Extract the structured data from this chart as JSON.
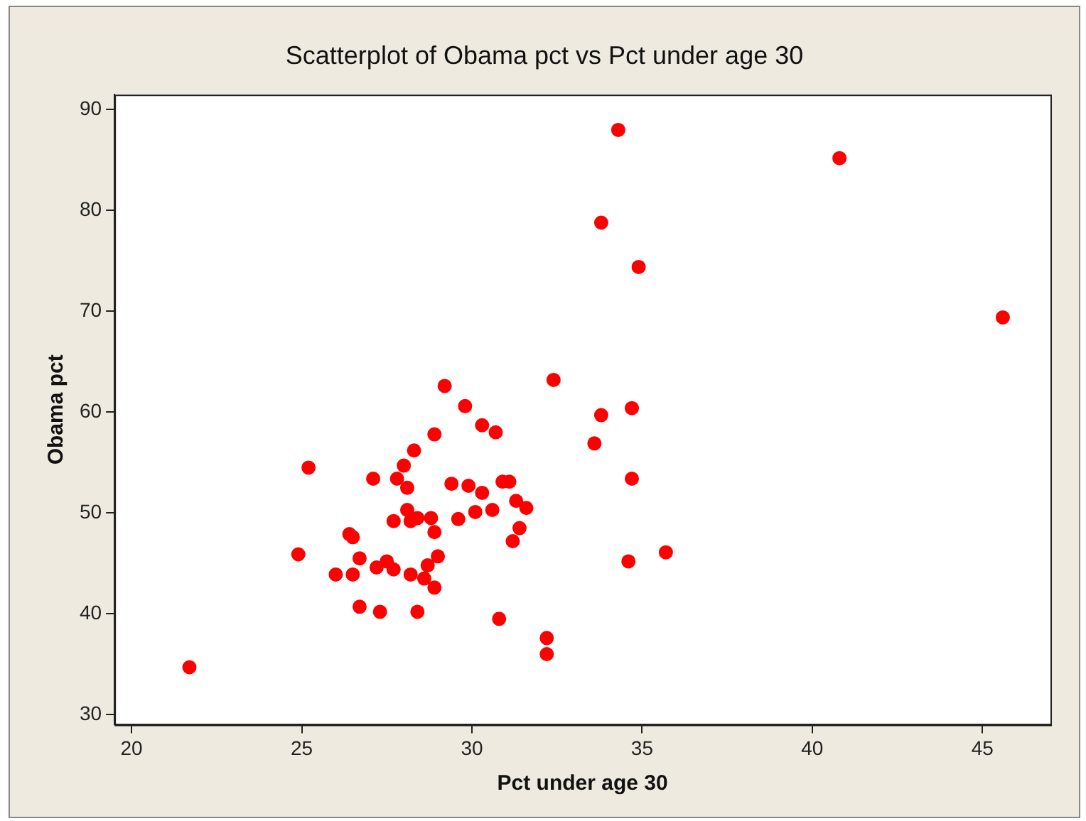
{
  "chart_data": {
    "type": "scatter",
    "title": "Scatterplot of Obama pct vs Pct under age 30",
    "xlabel": "Pct under age 30",
    "ylabel": "Obama pct",
    "series": [
      {
        "color": "#ff0000",
        "x": [
          21.7,
          24.9,
          25.2,
          26.0,
          26.4,
          26.5,
          26.5,
          26.7,
          26.7,
          27.1,
          27.2,
          27.3,
          27.5,
          27.7,
          27.7,
          27.8,
          28.0,
          28.1,
          28.1,
          28.2,
          28.2,
          28.3,
          28.4,
          28.4,
          28.6,
          28.7,
          28.8,
          28.9,
          28.9,
          28.9,
          29.0,
          29.2,
          29.4,
          29.6,
          29.8,
          29.9,
          30.1,
          30.3,
          30.3,
          30.6,
          30.7,
          30.8,
          30.9,
          31.1,
          31.2,
          31.3,
          31.4,
          31.6,
          32.2,
          32.2,
          32.4,
          33.6,
          33.8,
          33.8,
          34.3,
          34.6,
          34.7,
          34.7,
          34.9,
          35.7,
          40.8,
          45.6
        ],
        "values": [
          34.7,
          45.9,
          54.5,
          43.9,
          47.9,
          47.6,
          43.9,
          45.5,
          40.7,
          53.4,
          44.6,
          40.2,
          45.2,
          44.4,
          49.2,
          53.4,
          54.7,
          52.5,
          50.3,
          49.2,
          43.9,
          56.2,
          49.5,
          40.2,
          43.5,
          44.8,
          49.5,
          48.1,
          57.8,
          42.6,
          45.7,
          62.6,
          52.9,
          49.4,
          60.6,
          52.7,
          50.1,
          58.7,
          52.0,
          50.3,
          58.0,
          39.5,
          53.1,
          53.1,
          47.2,
          51.2,
          48.5,
          50.5,
          37.6,
          36.0,
          63.2,
          56.9,
          59.7,
          78.8,
          88.0,
          45.2,
          60.4,
          53.4,
          74.4,
          46.1,
          85.2,
          69.4
        ]
      }
    ],
    "xlim": [
      19.5,
      47
    ],
    "ylim": [
      29,
      91.5
    ],
    "xticks": [
      20,
      25,
      30,
      35,
      40,
      45
    ],
    "yticks": [
      30,
      40,
      50,
      60,
      70,
      80,
      90
    ],
    "marker": "circle",
    "grid": false,
    "legend": false
  }
}
